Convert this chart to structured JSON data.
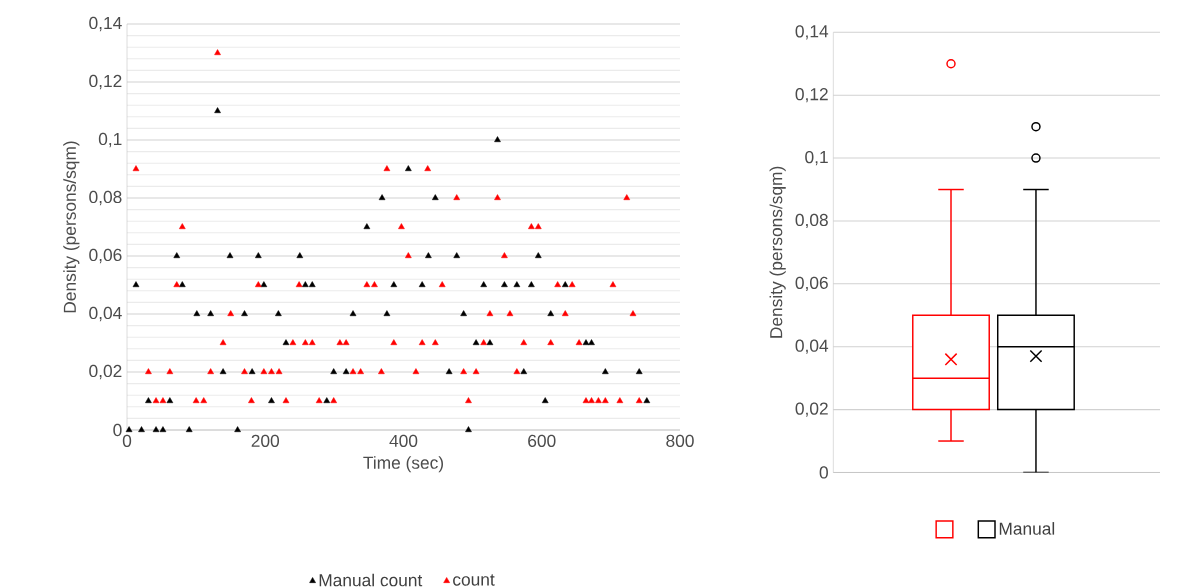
{
  "chart_data": [
    {
      "type": "scatter",
      "xlabel": "Time (sec)",
      "ylabel": "Density (persons/sqm)",
      "xlim": [
        0,
        800
      ],
      "xticks": [
        0,
        200,
        400,
        600,
        800
      ],
      "ylim": [
        0,
        0.14
      ],
      "yticks": [
        0,
        {
          "value": 0.02,
          "label": "0,02"
        },
        {
          "value": 0.04,
          "label": "0,04"
        },
        {
          "value": 0.06,
          "label": "0,06"
        },
        {
          "value": 0.08,
          "label": "0,08"
        },
        {
          "value": 0.1,
          "label": "0,1"
        },
        {
          "value": 0.12,
          "label": "0,12"
        },
        {
          "value": 0.14,
          "label": "0,14"
        }
      ],
      "grid": "y",
      "marker": "triangle",
      "legend": "bottom",
      "series": [
        {
          "name": "Manual count",
          "color": "#000000",
          "x": [
            3,
            21,
            42,
            52,
            90,
            160,
            494,
            31,
            62,
            209,
            289,
            605,
            752,
            139,
            181,
            299,
            317,
            466,
            574,
            692,
            741,
            230,
            505,
            525,
            664,
            672,
            101,
            121,
            170,
            219,
            327,
            376,
            487,
            613,
            13,
            80,
            198,
            258,
            268,
            386,
            427,
            516,
            546,
            564,
            585,
            634,
            72,
            149,
            190,
            250,
            436,
            477,
            595,
            347,
            369,
            446,
            407,
            536,
            131
          ],
          "values": [
            0,
            0,
            0,
            0,
            0,
            0,
            0,
            0.01,
            0.01,
            0.01,
            0.01,
            0.01,
            0.01,
            0.02,
            0.02,
            0.02,
            0.02,
            0.02,
            0.02,
            0.02,
            0.02,
            0.03,
            0.03,
            0.03,
            0.03,
            0.03,
            0.04,
            0.04,
            0.04,
            0.04,
            0.04,
            0.04,
            0.04,
            0.04,
            0.05,
            0.05,
            0.05,
            0.05,
            0.05,
            0.05,
            0.05,
            0.05,
            0.05,
            0.05,
            0.05,
            0.05,
            0.06,
            0.06,
            0.06,
            0.06,
            0.06,
            0.06,
            0.06,
            0.07,
            0.08,
            0.08,
            0.09,
            0.1,
            0.11
          ]
        },
        {
          "name": "count",
          "color": "#ff0000",
          "x": [
            42,
            52,
            100,
            111,
            180,
            230,
            278,
            299,
            494,
            664,
            672,
            682,
            692,
            713,
            741,
            31,
            62,
            121,
            170,
            198,
            209,
            220,
            327,
            338,
            368,
            418,
            487,
            505,
            564,
            139,
            240,
            258,
            268,
            308,
            317,
            386,
            427,
            446,
            516,
            574,
            613,
            654,
            150,
            525,
            554,
            634,
            732,
            72,
            190,
            249,
            347,
            358,
            456,
            623,
            644,
            703,
            407,
            546,
            80,
            397,
            585,
            595,
            477,
            536,
            723,
            13,
            376,
            435,
            131
          ],
          "values": [
            0.01,
            0.01,
            0.01,
            0.01,
            0.01,
            0.01,
            0.01,
            0.01,
            0.01,
            0.01,
            0.01,
            0.01,
            0.01,
            0.01,
            0.01,
            0.02,
            0.02,
            0.02,
            0.02,
            0.02,
            0.02,
            0.02,
            0.02,
            0.02,
            0.02,
            0.02,
            0.02,
            0.02,
            0.02,
            0.03,
            0.03,
            0.03,
            0.03,
            0.03,
            0.03,
            0.03,
            0.03,
            0.03,
            0.03,
            0.03,
            0.03,
            0.03,
            0.04,
            0.04,
            0.04,
            0.04,
            0.04,
            0.05,
            0.05,
            0.05,
            0.05,
            0.05,
            0.05,
            0.05,
            0.05,
            0.05,
            0.06,
            0.06,
            0.07,
            0.07,
            0.07,
            0.07,
            0.08,
            0.08,
            0.08,
            0.09,
            0.09,
            0.09,
            0.13
          ]
        }
      ]
    },
    {
      "type": "box",
      "ylabel": "Density (persons/sqm)",
      "categories": [
        null
      ],
      "ylim": [
        0,
        0.14
      ],
      "yticks": [
        0,
        {
          "value": 0.02,
          "label": "0,02"
        },
        {
          "value": 0.04,
          "label": "0,04"
        },
        {
          "value": 0.06,
          "label": "0,06"
        },
        {
          "value": 0.08,
          "label": "0,08"
        },
        {
          "value": 0.1,
          "label": "0,1"
        },
        {
          "value": 0.12,
          "label": "0,12"
        },
        {
          "value": 0.14,
          "label": "0,14"
        }
      ],
      "grid": "y",
      "legend": "bottom",
      "tick_labels": "y",
      "series": [
        {
          "color": "#ff0000",
          "boxes": [
            {
              "low": 0.01,
              "q1": 0.02,
              "median": 0.03,
              "q3": 0.05,
              "high": 0.09,
              "mean": 0.036,
              "outliers": [
                0.13
              ]
            }
          ]
        },
        {
          "name": "Manual",
          "color": "#000000",
          "boxes": [
            {
              "low": 0,
              "q1": 0.02,
              "median": 0.04,
              "q3": 0.05,
              "high": 0.09,
              "mean": 0.037,
              "outliers": [
                0.1,
                0.11
              ]
            }
          ]
        }
      ]
    }
  ]
}
